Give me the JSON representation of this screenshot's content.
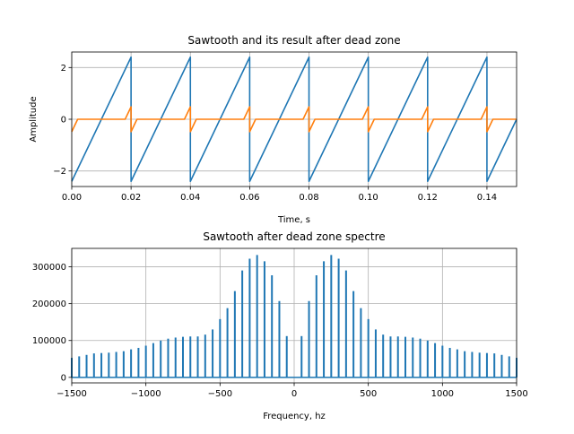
{
  "chart_data": [
    {
      "type": "line",
      "title": "Sawtooth and its result after dead zone",
      "xlabel": "Time, s",
      "ylabel": "Amplitude",
      "xlim": [
        0,
        0.15
      ],
      "ylim": [
        -2.6,
        2.6
      ],
      "xticks": [
        "0.00",
        "0.02",
        "0.04",
        "0.06",
        "0.08",
        "0.10",
        "0.12",
        "0.14"
      ],
      "xtick_values": [
        0,
        0.02,
        0.04,
        0.06,
        0.08,
        0.1,
        0.12,
        0.14
      ],
      "yticks": [
        "−2",
        "0",
        "2"
      ],
      "ytick_values": [
        -2,
        0,
        2
      ],
      "grid": true,
      "series": [
        {
          "color": "#1f77b4",
          "x": [
            0,
            0.02,
            0.02,
            0.04,
            0.04,
            0.06,
            0.06,
            0.08,
            0.08,
            0.1,
            0.1,
            0.12,
            0.12,
            0.14,
            0.14,
            0.15
          ],
          "y": [
            -2.4,
            2.4,
            -2.4,
            2.4,
            -2.4,
            2.4,
            -2.4,
            2.4,
            -2.4,
            2.4,
            -2.4,
            2.4,
            -2.4,
            2.4,
            -2.4,
            0
          ]
        },
        {
          "color": "#ff7f0e",
          "x": [
            0,
            0.002,
            0.018,
            0.02,
            0.02,
            0.022,
            0.038,
            0.04,
            0.04,
            0.042,
            0.058,
            0.06,
            0.06,
            0.062,
            0.078,
            0.08,
            0.08,
            0.082,
            0.098,
            0.1,
            0.1,
            0.102,
            0.118,
            0.12,
            0.12,
            0.122,
            0.138,
            0.14,
            0.14,
            0.142,
            0.15
          ],
          "y": [
            -0.48,
            0,
            0,
            0.48,
            -0.48,
            0,
            0,
            0.48,
            -0.48,
            0,
            0,
            0.48,
            -0.48,
            0,
            0,
            0.48,
            -0.48,
            0,
            0,
            0.48,
            -0.48,
            0,
            0,
            0.48,
            -0.48,
            0,
            0,
            0.48,
            -0.48,
            0,
            0
          ]
        }
      ]
    },
    {
      "type": "bar",
      "title": "Sawtooth after dead zone spectre",
      "xlabel": "Frequency, hz",
      "ylabel": "",
      "xlim": [
        -1500,
        1500
      ],
      "ylim": [
        -15000,
        350000
      ],
      "xticks": [
        "−1500",
        "−1000",
        "−500",
        "0",
        "500",
        "1000",
        "1500"
      ],
      "xtick_values": [
        -1500,
        -1000,
        -500,
        0,
        500,
        1000,
        1500
      ],
      "yticks": [
        "0",
        "100000",
        "200000",
        "300000"
      ],
      "ytick_values": [
        0,
        100000,
        200000,
        300000
      ],
      "grid": true,
      "color": "#1f77b4",
      "series": [
        {
          "x": [
            50,
            100,
            150,
            200,
            250,
            300,
            350,
            400,
            450,
            500,
            550,
            600,
            650,
            700,
            750,
            800,
            850,
            900,
            950,
            1000,
            1050,
            1100,
            1150,
            1200,
            1250,
            1300,
            1350,
            1400,
            1450,
            1500
          ],
          "values": [
            112000,
            207000,
            277000,
            315000,
            332000,
            322000,
            290000,
            234000,
            188000,
            158000,
            130000,
            116000,
            111000,
            111000,
            110000,
            108000,
            105000,
            100000,
            93000,
            86000,
            80000,
            76000,
            71000,
            69000,
            67000,
            66000,
            65000,
            61000,
            57000,
            53000
          ]
        }
      ]
    }
  ]
}
